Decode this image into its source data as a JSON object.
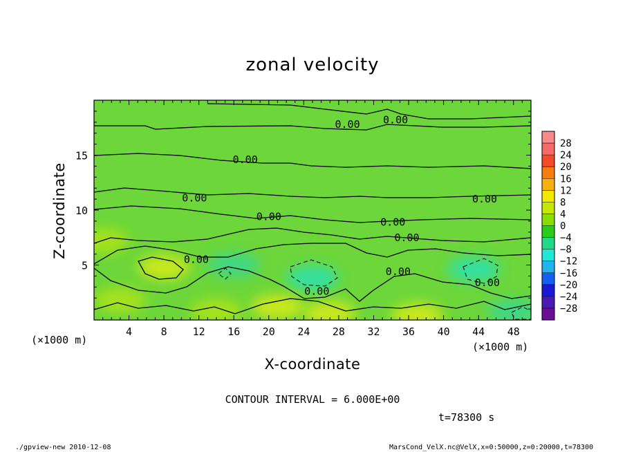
{
  "chart_data": {
    "type": "heatmap",
    "title": "zonal velocity",
    "xlabel": "X-coordinate",
    "ylabel": "Z-coordinate",
    "x_unit_left": "(×1000 m)",
    "x_unit_right": "(×1000 m)",
    "xlim": [
      0,
      50
    ],
    "ylim": [
      0,
      20
    ],
    "xticks": [
      "4",
      "8",
      "12",
      "16",
      "20",
      "24",
      "28",
      "32",
      "36",
      "40",
      "44",
      "48"
    ],
    "yticks": [
      "5",
      "10",
      "15"
    ],
    "contour_interval_text": "CONTOUR INTERVAL = 6.000E+00",
    "time_text": "t=78300 s",
    "contour_level_label": "0.00",
    "contour_labels": [
      {
        "x": 29,
        "z": 17.8
      },
      {
        "x": 34.5,
        "z": 18.2
      },
      {
        "x": 17.3,
        "z": 14.6
      },
      {
        "x": 11.5,
        "z": 11.1
      },
      {
        "x": 44.7,
        "z": 11.0
      },
      {
        "x": 20,
        "z": 9.4
      },
      {
        "x": 34.2,
        "z": 8.9
      },
      {
        "x": 35.8,
        "z": 7.5
      },
      {
        "x": 11.7,
        "z": 5.5
      },
      {
        "x": 34.8,
        "z": 4.4
      },
      {
        "x": 25.5,
        "z": 2.6
      },
      {
        "x": 45,
        "z": 3.4
      }
    ],
    "colorbar": {
      "levels": [
        "28",
        "24",
        "20",
        "16",
        "12",
        "8",
        "4",
        "0",
        "−4",
        "−8",
        "−12",
        "−16",
        "−20",
        "−24",
        "−28"
      ],
      "colors": [
        "#f88a8a",
        "#f76a6a",
        "#f44a2a",
        "#f77d10",
        "#f7b010",
        "#f1ea00",
        "#c6e800",
        "#8add00",
        "#2acc1a",
        "#22d98a",
        "#22e6d6",
        "#22b2ee",
        "#1460ee",
        "#1a1ad6",
        "#4a1ab2",
        "#6a0d98"
      ]
    },
    "blobs": [
      {
        "x": 8,
        "z": 4.8,
        "value": 6
      },
      {
        "x": 25,
        "z": 3.8,
        "value": -6
      },
      {
        "x": 43.5,
        "z": 4.6,
        "value": -6
      },
      {
        "x": 21,
        "z": 1.2,
        "value": 5
      },
      {
        "x": 27,
        "z": 0.6,
        "value": 5
      },
      {
        "x": 37,
        "z": 0.4,
        "value": 5
      },
      {
        "x": 48,
        "z": 0.8,
        "value": -4
      },
      {
        "x": 14,
        "z": 0.8,
        "value": 4
      },
      {
        "x": 3,
        "z": 1.8,
        "value": 3
      },
      {
        "x": 16,
        "z": 5.0,
        "value": -4
      },
      {
        "x": 1,
        "z": 7.2,
        "value": 4
      }
    ]
  },
  "footer": {
    "left": "./gpview-new   2010-12-08",
    "right": "MarsCond_VelX.nc@VelX,x=0:50000,z=0:20000,t=78300"
  }
}
